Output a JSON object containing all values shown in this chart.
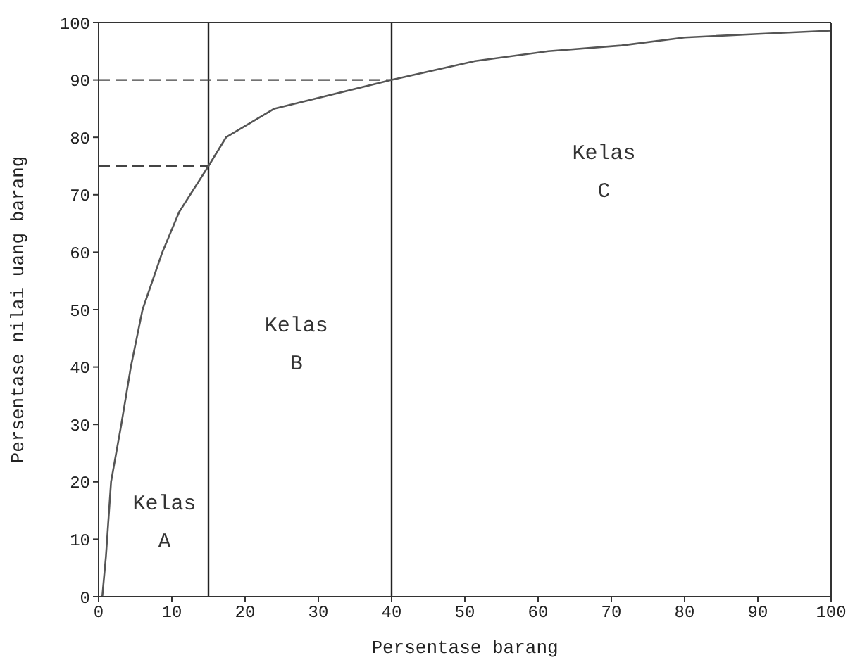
{
  "chart_data": {
    "type": "line",
    "xlabel": "Persentase barang",
    "ylabel": "Persentase nilai uang barang",
    "series": [
      {
        "color": "#555555",
        "x": [
          0.5,
          1,
          1.7,
          3.1,
          4.4,
          6,
          8.7,
          11,
          15,
          17.4,
          24,
          40,
          51.4,
          61.4,
          71.4,
          80,
          90,
          100
        ],
        "values": [
          0,
          7,
          20,
          30,
          40,
          50,
          60,
          67,
          75,
          80,
          85,
          90,
          93.3,
          95,
          96,
          97.4,
          98,
          98.6
        ]
      }
    ],
    "xlim": [
      0,
      100
    ],
    "ylim": [
      0,
      100
    ],
    "xticks": [
      0,
      10,
      20,
      30,
      40,
      50,
      60,
      70,
      80,
      90,
      100
    ],
    "yticks": [
      0,
      10,
      20,
      30,
      40,
      50,
      60,
      70,
      80,
      90,
      100
    ],
    "ref_lines": [
      {
        "axis": "x",
        "value": 15,
        "color": "#222222",
        "line_style": "solid"
      },
      {
        "axis": "x",
        "value": 40,
        "color": "#222222",
        "line_style": "solid"
      },
      {
        "axis": "y",
        "value": 75,
        "color": "#444444",
        "line_style": "dashed"
      },
      {
        "axis": "y",
        "value": 90,
        "color": "#444444",
        "line_style": "dashed"
      }
    ],
    "annotations": [
      "Kelas A",
      "Kelas B",
      "Kelas C"
    ],
    "grid": false,
    "marker": "none",
    "line_style": "solid"
  }
}
